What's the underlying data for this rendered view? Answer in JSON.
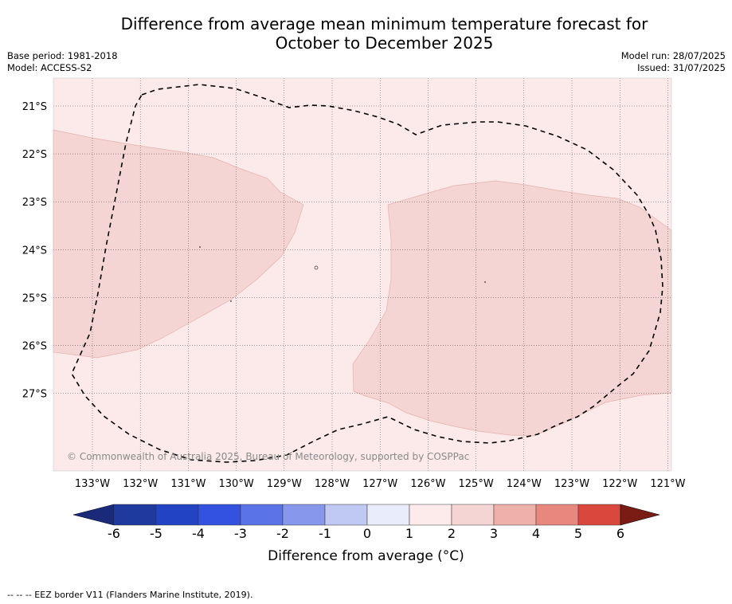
{
  "title_line1": "Difference from average mean minimum temperature forecast for",
  "title_line2": "October to December 2025",
  "base_period": "Base period: 1981-2018",
  "model": "Model: ACCESS-S2",
  "model_run": "Model run: 28/07/2025",
  "issued": "Issued: 31/07/2025",
  "copyright": "© Commonwealth of Australia 2025, Bureau of Meteorology, supported by COSPPac",
  "lon_labels": [
    "133°W",
    "132°W",
    "131°W",
    "130°W",
    "129°W",
    "128°W",
    "127°W",
    "126°W",
    "125°W",
    "124°W",
    "123°W",
    "122°W",
    "121°W"
  ],
  "lat_labels": [
    "21°S",
    "22°S",
    "23°S",
    "24°S",
    "25°S",
    "26°S",
    "27°S"
  ],
  "colorbar": {
    "label": "Difference from average ($^\\circ$C)",
    "label_text": "Difference from average (°C)",
    "ticks": [
      "-6",
      "-5",
      "-4",
      "-3",
      "-2",
      "-1",
      "0",
      "1",
      "2",
      "3",
      "4",
      "5",
      "6"
    ],
    "colors": [
      "#1f3a9e",
      "#2244c4",
      "#3352e0",
      "#5a73e6",
      "#8797ec",
      "#c0c8f4",
      "#e9ecfb",
      "#fcebea",
      "#f5d5d3",
      "#eeb0aa",
      "#e8877e",
      "#d9473d",
      "#a92920"
    ],
    "under_color": "#1a2a78",
    "over_color": "#7a1b14"
  },
  "map": {
    "background_color": "#fbeae9",
    "anomaly_color": "#f5d5d3",
    "region_count": 2
  },
  "eez_note": "--  --  -- EEZ border V11 (Flanders Marine Institute, 2019)."
}
